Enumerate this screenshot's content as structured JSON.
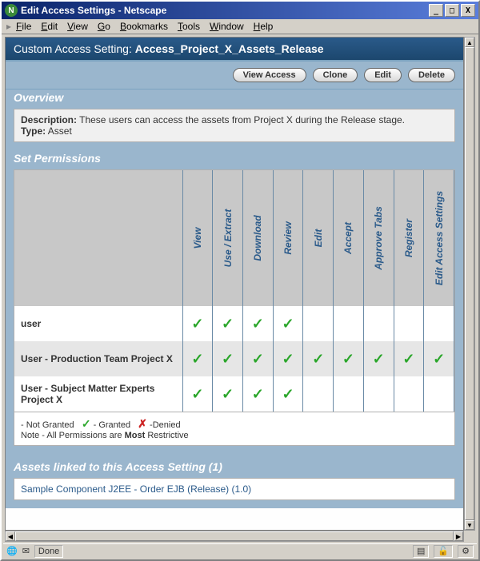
{
  "window": {
    "title": "Edit Access Settings - Netscape",
    "min": "_",
    "max": "□",
    "close": "X"
  },
  "menu": {
    "file": "File",
    "edit": "Edit",
    "view": "View",
    "go": "Go",
    "bookmarks": "Bookmarks",
    "tools": "Tools",
    "window": "Window",
    "help": "Help"
  },
  "header": {
    "prefix": "Custom Access Setting: ",
    "name": "Access_Project_X_Assets_Release"
  },
  "buttons": {
    "view_access": "View Access",
    "clone": "Clone",
    "edit": "Edit",
    "delete": "Delete"
  },
  "overview": {
    "title": "Overview",
    "desc_label": "Description:",
    "desc_text": " These users can access the assets from Project X during the Release stage.",
    "type_label": "Type:",
    "type_value": " Asset"
  },
  "permissions": {
    "title": "Set Permissions",
    "columns": [
      "View",
      "Use / Extract",
      "Download",
      "Review",
      "Edit",
      "Accept",
      "Approve Tabs",
      "Register",
      "Edit Access Settings"
    ],
    "rows": [
      {
        "label": "user",
        "grants": [
          true,
          true,
          true,
          true,
          false,
          false,
          false,
          false,
          false
        ]
      },
      {
        "label": "User - Production Team Project X",
        "grants": [
          true,
          true,
          true,
          true,
          true,
          true,
          true,
          true,
          true
        ]
      },
      {
        "label": "User - Subject Matter Experts Project X",
        "grants": [
          true,
          true,
          true,
          true,
          false,
          false,
          false,
          false,
          false
        ]
      }
    ],
    "legend": {
      "not_granted": "- Not Granted",
      "granted": "- Granted",
      "denied": "-Denied",
      "note_prefix": "Note - All Permissions are ",
      "note_bold": "Most",
      "note_suffix": " Restrictive"
    }
  },
  "assets": {
    "title": "Assets linked to this Access Setting (1)",
    "items": [
      "Sample Component J2EE - Order EJB (Release) (1.0)"
    ]
  },
  "status": {
    "done": "Done"
  },
  "style": {
    "header_bg": "#2a5a8a",
    "panel_accent": "#9ab6cd",
    "link_color": "#2a5a8a",
    "check_color": "#2aa62a",
    "deny_color": "#cc2222"
  }
}
